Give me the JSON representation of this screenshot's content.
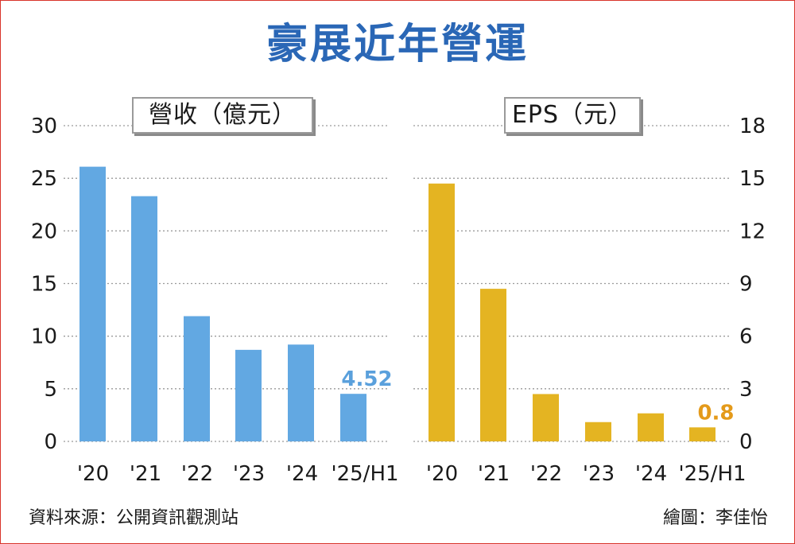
{
  "title": "豪展近年營運",
  "colors": {
    "title": "#2a67b6",
    "revenue_bar": "#62a8e2",
    "revenue_label": "#5aa0dc",
    "eps_bar": "#e4b422",
    "eps_label": "#e49a1a",
    "grid": "#9a9a9a",
    "border": "#d9342b"
  },
  "chart_data": [
    {
      "type": "bar",
      "title": "營收（億元）",
      "categories": [
        "'20",
        "'21",
        "'22",
        "'23",
        "'24",
        "'25/H1"
      ],
      "values": [
        26.1,
        23.3,
        11.9,
        8.7,
        9.2,
        4.52
      ],
      "yticks": [
        "0",
        "5",
        "10",
        "15",
        "20",
        "25",
        "30"
      ],
      "ylim": [
        0,
        30
      ],
      "axis_side": "left",
      "grid": true,
      "highlight_label": "4.52",
      "highlight_index": 5
    },
    {
      "type": "bar",
      "title": "EPS（元）",
      "categories": [
        "'20",
        "'21",
        "'22",
        "'23",
        "'24",
        "'25/H1"
      ],
      "values": [
        14.7,
        8.7,
        2.7,
        1.1,
        1.6,
        0.8
      ],
      "yticks": [
        "0",
        "3",
        "6",
        "9",
        "12",
        "15",
        "18"
      ],
      "ylim": [
        0,
        18
      ],
      "axis_side": "right",
      "grid": true,
      "highlight_label": "0.8",
      "highlight_index": 5
    }
  ],
  "footer": {
    "source": "資料來源：公開資訊觀測站",
    "credit": "繪圖：李佳怡"
  }
}
